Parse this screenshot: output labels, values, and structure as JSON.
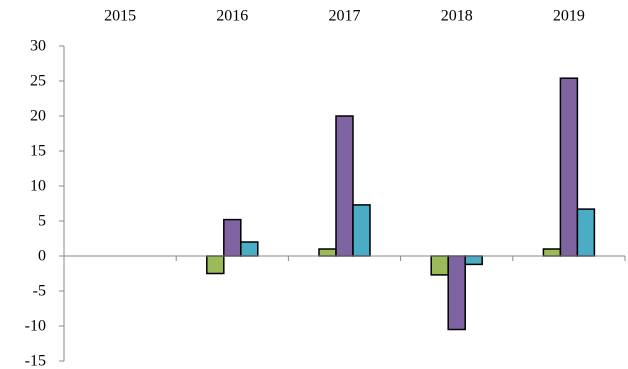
{
  "chart_data": {
    "type": "bar",
    "categories": [
      "2015",
      "2016",
      "2017",
      "2018",
      "2019"
    ],
    "series": [
      {
        "color": "#9bbb59",
        "values": [
          0,
          -2.5,
          1.0,
          -2.7,
          1.0
        ]
      },
      {
        "color": "#8064a2",
        "values": [
          0,
          5.2,
          20.0,
          -10.5,
          25.4
        ]
      },
      {
        "color": "#4bacc6",
        "values": [
          0,
          2.0,
          7.3,
          -1.2,
          6.7
        ]
      }
    ],
    "yticks": [
      "30",
      "25",
      "20",
      "15",
      "10",
      "5",
      "0",
      "-5",
      "-10",
      "-15"
    ],
    "ylim": [
      -15,
      30
    ],
    "title": "",
    "xlabel": "",
    "ylabel": "",
    "grid": false,
    "legend": "none"
  }
}
